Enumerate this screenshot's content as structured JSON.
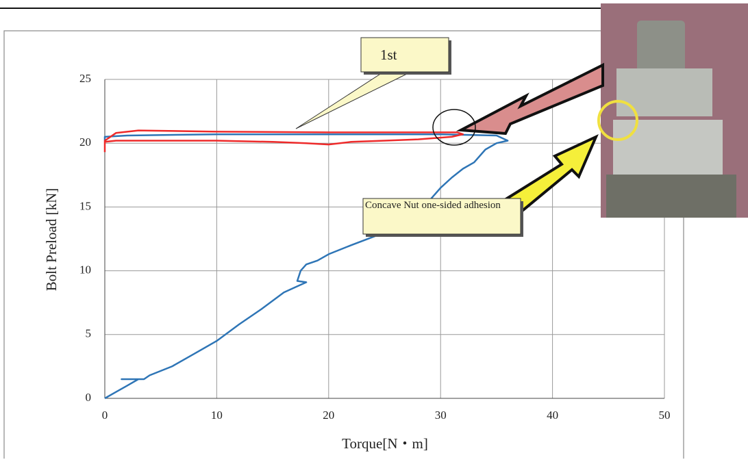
{
  "chart_data": {
    "type": "line",
    "x_label": "Torque[N・m]",
    "y_label": "Bolt Preload [kN]",
    "xlim": [
      0,
      50
    ],
    "xticks": [
      0,
      10,
      20,
      30,
      40,
      50
    ],
    "ylim": [
      0,
      25
    ],
    "yticks": [
      0,
      5,
      10,
      15,
      20,
      25
    ],
    "grid": true,
    "series": [
      {
        "color": "#2e75b6",
        "x": [
          0,
          1,
          2,
          3,
          1.5,
          3.5,
          4,
          6,
          8,
          10,
          12,
          14,
          16,
          17,
          18,
          17.2,
          17.5,
          18,
          19,
          20,
          22,
          25,
          27,
          29,
          30,
          31,
          32,
          33,
          34,
          35,
          36,
          35,
          30,
          20,
          10,
          2,
          0,
          0
        ],
        "values": [
          0,
          0.5,
          1,
          1.5,
          1.5,
          1.5,
          1.8,
          2.5,
          3.5,
          4.5,
          5.8,
          7,
          8.3,
          8.7,
          9.1,
          9.2,
          10,
          10.5,
          10.8,
          11.3,
          12,
          13,
          14,
          15.5,
          16.5,
          17.3,
          18,
          18.5,
          19.5,
          20,
          20.2,
          20.6,
          20.7,
          20.7,
          20.7,
          20.6,
          20.5,
          20.2
        ]
      },
      {
        "color": "#ee2a2a",
        "x": [
          0,
          0,
          1,
          3,
          10,
          20,
          31.5,
          32,
          31,
          28,
          25,
          22,
          20,
          18,
          15,
          10,
          5,
          1,
          0
        ],
        "values": [
          19.3,
          20.2,
          20.8,
          21,
          20.9,
          20.85,
          20.85,
          20.7,
          20.5,
          20.3,
          20.2,
          20.1,
          19.9,
          20,
          20.1,
          20.2,
          20.2,
          20.2,
          20.1
        ]
      }
    ],
    "annotations": [
      "1st",
      "Concave Nut one-sided adhesion"
    ]
  }
}
